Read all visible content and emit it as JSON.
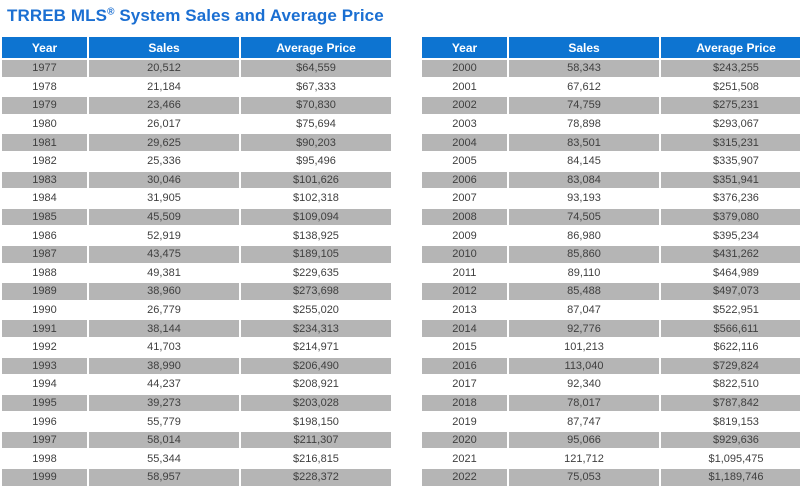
{
  "title": {
    "prefix": "TRREB MLS",
    "reg": "®",
    "suffix": " System Sales and Average Price"
  },
  "colors": {
    "title_blue": "#1b6fd2",
    "header_blue": "#0d74d1",
    "row_gray": "#b5b5b5",
    "header_text": "#ffffff",
    "cell_text": "#3f3f3f"
  },
  "chart_data": {
    "type": "table",
    "title": "TRREB MLS® System Sales and Average Price",
    "columns": [
      "Year",
      "Sales",
      "Average Price"
    ],
    "layout": "two side-by-side tables, alternating gray/white rows starting gray",
    "tables": [
      {
        "rows": [
          [
            "1977",
            "20,512",
            "$64,559"
          ],
          [
            "1978",
            "21,184",
            "$67,333"
          ],
          [
            "1979",
            "23,466",
            "$70,830"
          ],
          [
            "1980",
            "26,017",
            "$75,694"
          ],
          [
            "1981",
            "29,625",
            "$90,203"
          ],
          [
            "1982",
            "25,336",
            "$95,496"
          ],
          [
            "1983",
            "30,046",
            "$101,626"
          ],
          [
            "1984",
            "31,905",
            "$102,318"
          ],
          [
            "1985",
            "45,509",
            "$109,094"
          ],
          [
            "1986",
            "52,919",
            "$138,925"
          ],
          [
            "1987",
            "43,475",
            "$189,105"
          ],
          [
            "1988",
            "49,381",
            "$229,635"
          ],
          [
            "1989",
            "38,960",
            "$273,698"
          ],
          [
            "1990",
            "26,779",
            "$255,020"
          ],
          [
            "1991",
            "38,144",
            "$234,313"
          ],
          [
            "1992",
            "41,703",
            "$214,971"
          ],
          [
            "1993",
            "38,990",
            "$206,490"
          ],
          [
            "1994",
            "44,237",
            "$208,921"
          ],
          [
            "1995",
            "39,273",
            "$203,028"
          ],
          [
            "1996",
            "55,779",
            "$198,150"
          ],
          [
            "1997",
            "58,014",
            "$211,307"
          ],
          [
            "1998",
            "55,344",
            "$216,815"
          ],
          [
            "1999",
            "58,957",
            "$228,372"
          ]
        ]
      },
      {
        "rows": [
          [
            "2000",
            "58,343",
            "$243,255"
          ],
          [
            "2001",
            "67,612",
            "$251,508"
          ],
          [
            "2002",
            "74,759",
            "$275,231"
          ],
          [
            "2003",
            "78,898",
            "$293,067"
          ],
          [
            "2004",
            "83,501",
            "$315,231"
          ],
          [
            "2005",
            "84,145",
            "$335,907"
          ],
          [
            "2006",
            "83,084",
            "$351,941"
          ],
          [
            "2007",
            "93,193",
            "$376,236"
          ],
          [
            "2008",
            "74,505",
            "$379,080"
          ],
          [
            "2009",
            "86,980",
            "$395,234"
          ],
          [
            "2010",
            "85,860",
            "$431,262"
          ],
          [
            "2011",
            "89,110",
            "$464,989"
          ],
          [
            "2012",
            "85,488",
            "$497,073"
          ],
          [
            "2013",
            "87,047",
            "$522,951"
          ],
          [
            "2014",
            "92,776",
            "$566,611"
          ],
          [
            "2015",
            "101,213",
            "$622,116"
          ],
          [
            "2016",
            "113,040",
            "$729,824"
          ],
          [
            "2017",
            "92,340",
            "$822,510"
          ],
          [
            "2018",
            "78,017",
            "$787,842"
          ],
          [
            "2019",
            "87,747",
            "$819,153"
          ],
          [
            "2020",
            "95,066",
            "$929,636"
          ],
          [
            "2021",
            "121,712",
            "$1,095,475"
          ],
          [
            "2022",
            "75,053",
            "$1,189,746"
          ]
        ]
      }
    ]
  }
}
